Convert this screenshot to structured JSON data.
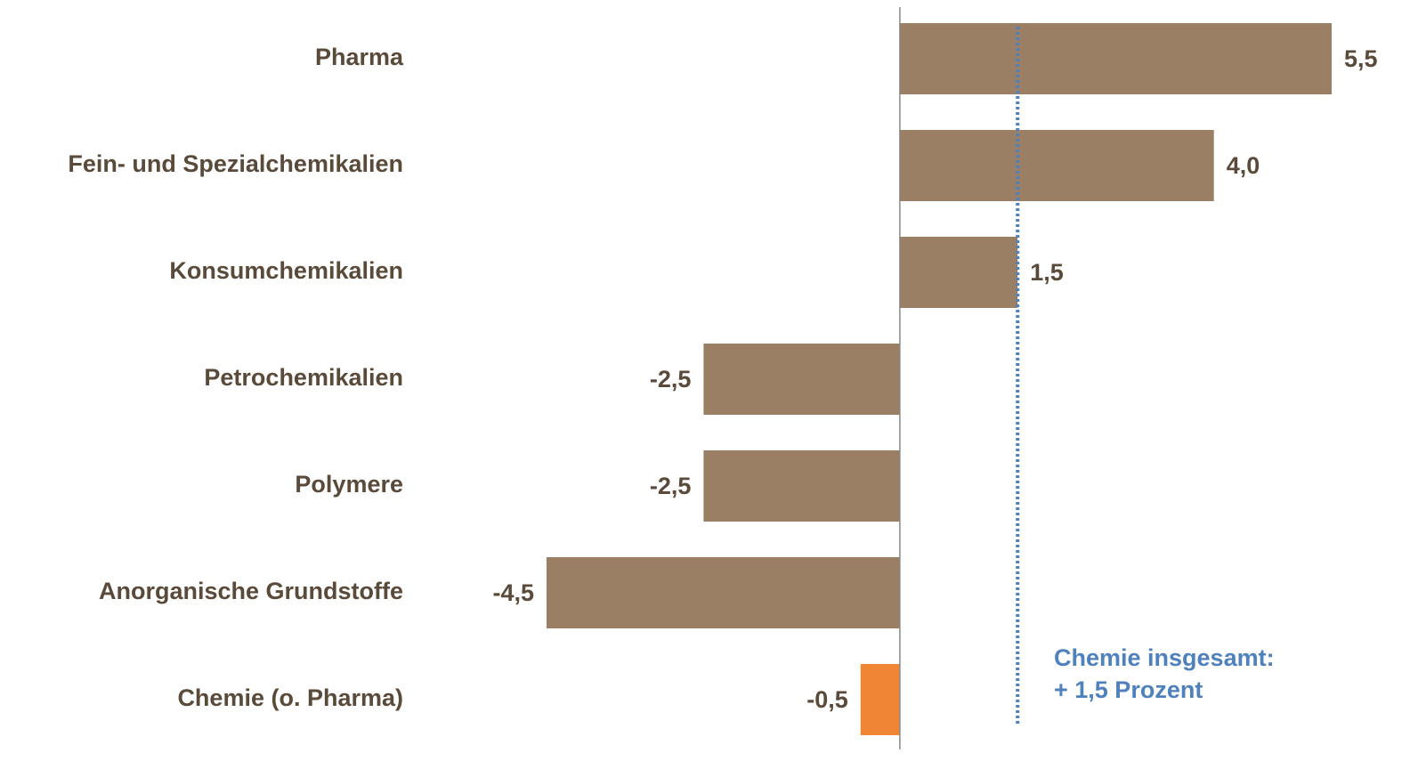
{
  "chart_data": {
    "type": "bar",
    "orientation": "horizontal",
    "categories": [
      "Pharma",
      "Fein- und Spezialchemikalien",
      "Konsumchemikalien",
      "Petrochemikalien",
      "Polymere",
      "Anorganische Grundstoffe",
      "Chemie (o. Pharma)"
    ],
    "values": [
      5.5,
      4.0,
      1.5,
      -2.5,
      -2.5,
      -4.5,
      -0.5
    ],
    "value_labels": [
      "5,5",
      "4,0",
      "1,5",
      "-2,5",
      "-2,5",
      "-4,5",
      "-0,5"
    ],
    "colors": [
      "#9b7f65",
      "#9b7f65",
      "#9b7f65",
      "#9b7f65",
      "#9b7f65",
      "#9b7f65",
      "#f08533"
    ],
    "reference_line": {
      "value": 1.5,
      "color": "#4f81bd",
      "label": [
        "Chemie insgesamt:",
        "+ 1,5 Prozent"
      ]
    }
  }
}
